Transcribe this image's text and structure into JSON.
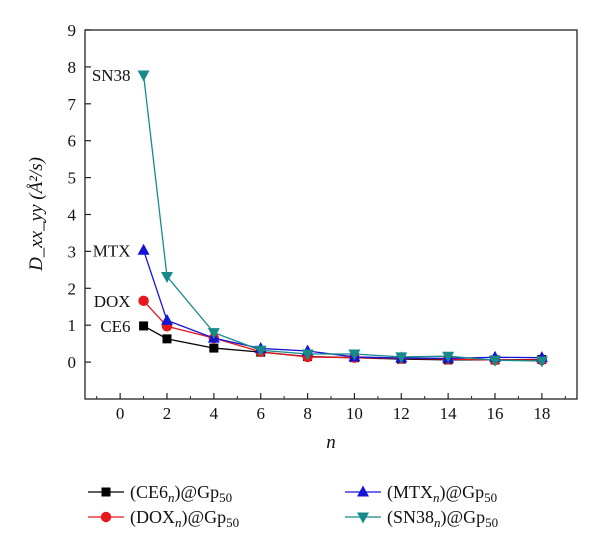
{
  "chart_data": {
    "type": "line",
    "x": [
      1,
      2,
      4,
      6,
      8,
      10,
      12,
      14,
      16,
      18
    ],
    "xlabel": "n",
    "ylabel": "D_xx_yy (Å²/s)",
    "xlim": [
      -1.5,
      19.5
    ],
    "ylim": [
      -1,
      9
    ],
    "xticks": [
      0,
      2,
      4,
      6,
      8,
      10,
      12,
      14,
      16,
      18
    ],
    "yticks": [
      0,
      1,
      2,
      3,
      4,
      5,
      6,
      7,
      8,
      9
    ],
    "grid": false,
    "legend_position": "bottom",
    "series": [
      {
        "name": "(CE6n)@Gp50",
        "marker": "square",
        "color": "#000000",
        "values": [
          0.98,
          0.63,
          0.38,
          0.27,
          0.15,
          0.12,
          0.08,
          0.06,
          0.06,
          0.07
        ]
      },
      {
        "name": "(DOXn)@Gp50",
        "marker": "circle",
        "color": "#e8161a",
        "values": [
          1.66,
          0.97,
          0.65,
          0.28,
          0.14,
          0.12,
          0.1,
          0.08,
          0.06,
          0.06
        ]
      },
      {
        "name": "(MTXn)@Gp50",
        "marker": "triangle-up",
        "color": "#1414d6",
        "values": [
          3.03,
          1.13,
          0.65,
          0.37,
          0.3,
          0.14,
          0.11,
          0.1,
          0.13,
          0.12
        ]
      },
      {
        "name": "(SN38n)@Gp50",
        "marker": "triangle-down",
        "color": "#178a8a",
        "values": [
          7.78,
          2.32,
          0.8,
          0.32,
          0.22,
          0.22,
          0.14,
          0.16,
          0.05,
          0.03
        ]
      }
    ],
    "annotations": [
      {
        "text": "SN38",
        "series": 3
      },
      {
        "text": "MTX",
        "series": 2
      },
      {
        "text": "DOX",
        "series": 1
      },
      {
        "text": "CE6",
        "series": 0
      }
    ]
  }
}
